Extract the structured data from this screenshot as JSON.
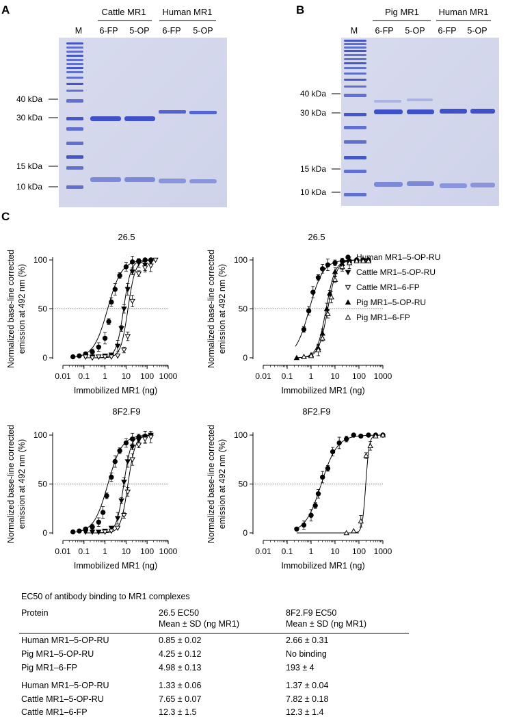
{
  "panels": {
    "a": "A",
    "b": "B",
    "c": "C"
  },
  "gel_a": {
    "group_labels": [
      "Cattle MR1",
      "Human MR1"
    ],
    "lane_labels": [
      "M",
      "6-FP",
      "5-OP",
      "6-FP",
      "5-OP"
    ],
    "marker_labels": [
      "40 kDa",
      "30 kDa",
      "15 kDa",
      "10 kDa"
    ]
  },
  "gel_b": {
    "group_labels": [
      "Pig MR1",
      "Human MR1"
    ],
    "lane_labels": [
      "M",
      "6-FP",
      "5-OP",
      "6-FP",
      "5-OP"
    ],
    "marker_labels": [
      "40 kDa",
      "30 kDa",
      "15 kDa",
      "10 kDa"
    ]
  },
  "legend": [
    {
      "label": "Human MR1–5-OP-RU",
      "marker": "filled-circle"
    },
    {
      "label": "Cattle MR1–5-OP-RU",
      "marker": "filled-triangle-down"
    },
    {
      "label": "Cattle MR1–6-FP",
      "marker": "open-triangle-down"
    },
    {
      "label": "Pig MR1–5-OP-RU",
      "marker": "filled-triangle-up"
    },
    {
      "label": "Pig MR1–6-FP",
      "marker": "open-triangle-up"
    }
  ],
  "chart_data": [
    {
      "type": "scatter",
      "title": "26.5",
      "xlabel": "Immobilized MR1 (ng)",
      "ylabel_lines": [
        "Normalized base-line corrected",
        "emission at 492 nm (%)"
      ],
      "xscale": "log",
      "xlim": [
        0.01,
        1000
      ],
      "ylim": [
        0,
        100
      ],
      "xticks": [
        "0.01",
        "0.1",
        "1",
        "10",
        "100",
        "1000"
      ],
      "yticks": [
        "0",
        "50",
        "100"
      ],
      "reference_line_y": 50,
      "series": [
        {
          "name": "Human MR1–5-OP-RU",
          "marker": "filled-circle",
          "ec50": 1.33,
          "hill": 1.3,
          "fit_range": [
            0.03,
            150
          ],
          "x": [
            0.03,
            0.06,
            0.12,
            0.25,
            0.5,
            1,
            1.5,
            2,
            3,
            5,
            10,
            20,
            40,
            80,
            150
          ],
          "y": [
            1,
            2,
            4,
            6,
            11,
            20,
            37,
            57,
            70,
            84,
            93,
            98,
            99,
            100,
            100
          ]
        },
        {
          "name": "Cattle MR1–5-OP-RU",
          "marker": "filled-triangle-down",
          "ec50": 7.65,
          "hill": 2.5,
          "fit_range": [
            0.1,
            250
          ],
          "x": [
            0.12,
            0.25,
            0.5,
            1,
            2,
            4,
            6,
            8,
            12,
            20,
            40,
            80,
            150
          ],
          "y": [
            1,
            1,
            1,
            2,
            3,
            12,
            30,
            50,
            70,
            88,
            97,
            95,
            98
          ]
        },
        {
          "name": "Cattle MR1–6-FP",
          "marker": "open-triangle-down",
          "ec50": 12.3,
          "hill": 2.5,
          "fit_range": [
            0.1,
            250
          ],
          "x": [
            0.12,
            0.25,
            0.5,
            1,
            2,
            4,
            8,
            12,
            20,
            40,
            80,
            150,
            250
          ],
          "y": [
            1,
            0,
            1,
            1,
            1,
            2,
            8,
            22,
            58,
            86,
            92,
            94,
            100
          ]
        }
      ]
    },
    {
      "type": "scatter",
      "title": "26.5",
      "xlabel": "Immobilized MR1 (ng)",
      "ylabel_lines": [
        "Normalized base-line corrected",
        "emission at 492 nm (%)"
      ],
      "xscale": "log",
      "xlim": [
        0.01,
        1000
      ],
      "ylim": [
        0,
        100
      ],
      "xticks": [
        "0.01",
        "0.1",
        "1",
        "10",
        "100",
        "1000"
      ],
      "yticks": [
        "0",
        "50",
        "100"
      ],
      "reference_line_y": 50,
      "series": [
        {
          "name": "Human MR1–5-OP-RU",
          "marker": "filled-circle",
          "ec50": 0.85,
          "hill": 1.5,
          "fit_range": [
            0.22,
            250
          ],
          "x": [
            0.5,
            0.8,
            1.2,
            2,
            3,
            5,
            10,
            20,
            40,
            80,
            150,
            250
          ],
          "y": [
            29,
            48,
            67,
            82,
            91,
            95,
            97,
            99,
            99,
            100,
            100,
            100
          ]
        },
        {
          "name": "Pig MR1–5-OP-RU",
          "marker": "filled-triangle-up",
          "ec50": 4.25,
          "hill": 2.3,
          "fit_range": [
            0.22,
            250
          ],
          "x": [
            0.25,
            0.5,
            1,
            2,
            3,
            4.5,
            6,
            10,
            20,
            40,
            80,
            150,
            250
          ],
          "y": [
            0,
            1,
            3,
            10,
            25,
            50,
            66,
            88,
            96,
            99,
            100,
            100,
            100
          ]
        },
        {
          "name": "Pig MR1–6-FP",
          "marker": "open-triangle-up",
          "ec50": 4.98,
          "hill": 2.3,
          "fit_range": [
            0.22,
            250
          ],
          "x": [
            0.5,
            1,
            2,
            3,
            5,
            7,
            10,
            20,
            40,
            80,
            150,
            250
          ],
          "y": [
            1,
            2,
            8,
            20,
            45,
            62,
            80,
            93,
            97,
            99,
            99,
            99
          ]
        }
      ]
    },
    {
      "type": "scatter",
      "title": "8F2.F9",
      "xlabel": "Immobilized MR1 (ng)",
      "ylabel_lines": [
        "Normalized base-line corrected",
        "emission at 492 nm (%)"
      ],
      "xscale": "log",
      "xlim": [
        0.01,
        1000
      ],
      "ylim": [
        0,
        100
      ],
      "xticks": [
        "0.01",
        "0.1",
        "1",
        "10",
        "100",
        "1000"
      ],
      "yticks": [
        "0",
        "50",
        "100"
      ],
      "reference_line_y": 50,
      "series": [
        {
          "name": "Human MR1–5-OP-RU",
          "marker": "filled-circle",
          "ec50": 1.37,
          "hill": 1.3,
          "fit_range": [
            0.03,
            150
          ],
          "x": [
            0.03,
            0.06,
            0.12,
            0.25,
            0.5,
            0.8,
            1.2,
            2,
            3,
            5,
            10,
            20,
            40,
            80,
            150
          ],
          "y": [
            1,
            2,
            4,
            6,
            11,
            21,
            38,
            57,
            73,
            84,
            92,
            96,
            98,
            99,
            100
          ]
        },
        {
          "name": "Cattle MR1–5-OP-RU",
          "marker": "filled-triangle-down",
          "ec50": 7.82,
          "hill": 2.5,
          "fit_range": [
            0.1,
            150
          ],
          "x": [
            0.12,
            0.25,
            0.5,
            1,
            2,
            4,
            6,
            8,
            12,
            20,
            40,
            80,
            150
          ],
          "y": [
            1,
            1,
            1,
            2,
            5,
            15,
            33,
            52,
            73,
            88,
            95,
            98,
            100
          ]
        },
        {
          "name": "Cattle MR1–6-FP",
          "marker": "open-triangle-down",
          "ec50": 12.3,
          "hill": 2.5,
          "fit_range": [
            0.1,
            150
          ],
          "x": [
            1,
            2,
            4,
            8,
            12,
            20,
            40,
            80,
            150
          ],
          "y": [
            1,
            2,
            5,
            18,
            42,
            75,
            90,
            96,
            98
          ]
        }
      ]
    },
    {
      "type": "scatter",
      "title": "8F2.F9",
      "xlabel": "Immobilized MR1 (ng)",
      "ylabel_lines": [
        "Normalized base-line corrected",
        "emission at 492 nm (%)"
      ],
      "xscale": "log",
      "xlim": [
        0.01,
        1000
      ],
      "ylim": [
        0,
        100
      ],
      "xticks": [
        "0.01",
        "0.1",
        "1",
        "10",
        "100",
        "1000"
      ],
      "yticks": [
        "0",
        "50",
        "100"
      ],
      "reference_line_y": 50,
      "series": [
        {
          "name": "Human MR1–5-OP-RU",
          "marker": "filled-circle",
          "ec50": 2.66,
          "hill": 1.3,
          "fit_range": [
            0.25,
            1000
          ],
          "x": [
            0.25,
            0.5,
            1,
            1.5,
            2,
            3,
            5,
            8,
            15,
            30,
            60,
            120,
            250,
            500,
            1000
          ],
          "y": [
            4,
            8,
            18,
            28,
            40,
            57,
            66,
            83,
            92,
            96,
            100,
            99,
            100,
            100,
            100
          ]
        },
        {
          "name": "Pig MR1–5-OP-RU",
          "marker": "filled-triangle-up",
          "ec50": null,
          "hill": null,
          "fit_range": [
            0.25,
            100
          ],
          "x": [],
          "y": []
        },
        {
          "name": "Pig MR1–6-FP",
          "marker": "open-triangle-up",
          "ec50": 193,
          "hill": 6,
          "fit_range": [
            0.25,
            1000
          ],
          "x": [
            30,
            60,
            120,
            200,
            300,
            500,
            1000
          ],
          "y": [
            0,
            2,
            12,
            79,
            89,
            99,
            100
          ]
        }
      ]
    }
  ],
  "table": {
    "title": "EC50 of antibody binding to MR1 complexes",
    "header": {
      "protein": "Protein",
      "col1_line1": "26.5 EC50",
      "col1_line2": "Mean ± SD (ng MR1)",
      "col2_line1": "8F2.F9 EC50",
      "col2_line2": "Mean ± SD (ng MR1)"
    },
    "group1": [
      {
        "protein": "Human MR1–5-OP-RU",
        "ec50_265": "0.85 ± 0.02",
        "ec50_8f2": "2.66 ± 0.31"
      },
      {
        "protein": "Pig MR1–5-OP-RU",
        "ec50_265": "4.25 ± 0.12",
        "ec50_8f2": "No binding"
      },
      {
        "protein": "Pig MR1–6-FP",
        "ec50_265": "4.98 ± 0.13",
        "ec50_8f2": "193 ± 4"
      }
    ],
    "group2": [
      {
        "protein": "Human MR1–5-OP-RU",
        "ec50_265": "1.33 ± 0.06",
        "ec50_8f2": "1.37 ± 0.04"
      },
      {
        "protein": "Cattle MR1–5-OP-RU",
        "ec50_265": "7.65 ± 0.07",
        "ec50_8f2": "7.82 ± 0.18"
      },
      {
        "protein": "Cattle MR1–6-FP",
        "ec50_265": "12.3 ± 1.5",
        "ec50_8f2": "12.3 ± 1.4"
      }
    ]
  }
}
